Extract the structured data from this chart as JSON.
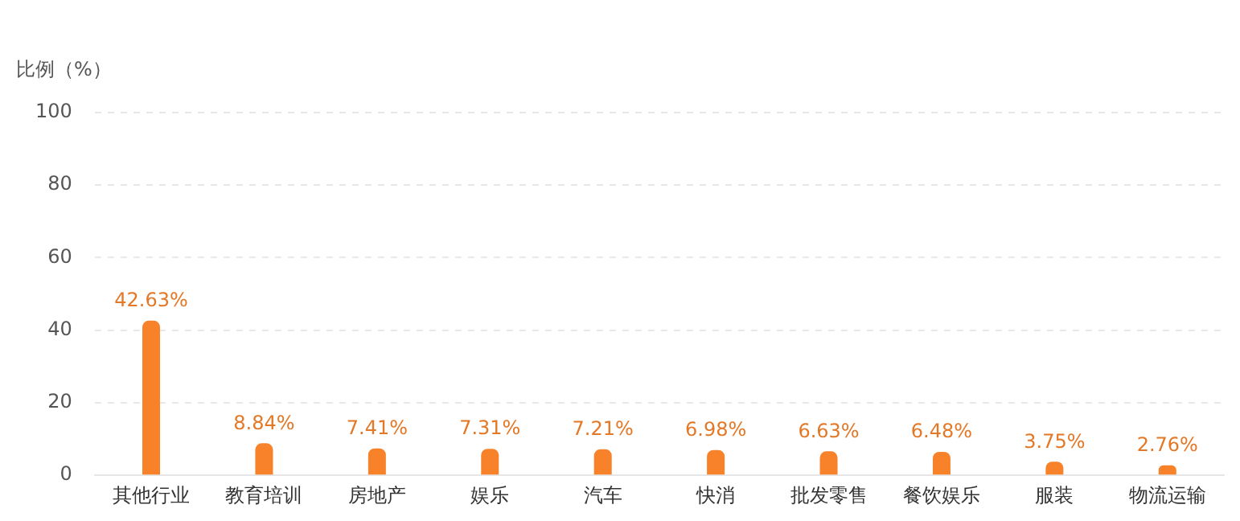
{
  "chart_data": {
    "type": "bar",
    "ylabel": "比例（%）",
    "categories": [
      "其他行业",
      "教育培训",
      "房地产",
      "娱乐",
      "汽车",
      "快消",
      "批发零售",
      "餐饮娱乐",
      "服装",
      "物流运输"
    ],
    "values": [
      42.63,
      8.84,
      7.41,
      7.31,
      7.21,
      6.98,
      6.63,
      6.48,
      3.75,
      2.76
    ],
    "value_labels": [
      "42.63%",
      "8.84%",
      "7.41%",
      "7.31%",
      "7.21%",
      "6.98%",
      "6.63%",
      "6.48%",
      "3.75%",
      "2.76%"
    ],
    "color": "#f7822a",
    "ylim": [
      0,
      100
    ],
    "yticks": [
      0,
      20,
      40,
      60,
      80,
      100
    ],
    "grid": "y",
    "legend": false
  }
}
